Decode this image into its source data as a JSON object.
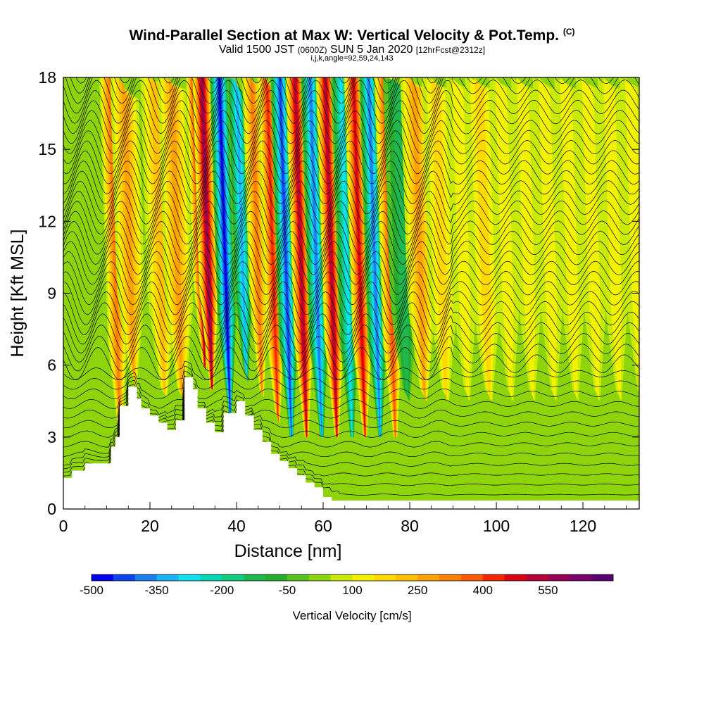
{
  "chart_data": {
    "type": "heatmap",
    "title": "Wind-Parallel Section at Max W: Vertical Velocity & Pot.Temp.",
    "title_suffix": "(C)",
    "subtitle": {
      "a": "Valid 1500 JST",
      "b": "(0600Z)",
      "c": "SUN 5 Jan 2020",
      "d": "[12hrFcst@2312z]"
    },
    "parameters": "i,j,k,angle=92,59,24,143",
    "xlabel": "Distance [nm]",
    "ylabel": "Height [Kft MSL]",
    "xlim": [
      0,
      133
    ],
    "ylim": [
      0,
      18
    ],
    "xticks": [
      0,
      20,
      40,
      60,
      80,
      100,
      120
    ],
    "yticks": [
      0,
      3,
      6,
      9,
      12,
      15,
      18
    ],
    "colorbar": {
      "label": "Vertical Velocity [cm/s]",
      "levels": [
        -500,
        -450,
        -400,
        -350,
        -300,
        -250,
        -200,
        -150,
        -100,
        -50,
        0,
        50,
        100,
        150,
        200,
        250,
        300,
        350,
        400,
        450,
        500,
        550,
        600,
        650
      ],
      "tick_labels": [
        "-500",
        "-350",
        "-200",
        "-50",
        "100",
        "250",
        "400",
        "550"
      ],
      "tick_values": [
        -500,
        -350,
        -200,
        -50,
        100,
        250,
        400,
        550
      ],
      "colors": [
        "#0000f0",
        "#0b44ee",
        "#1a7ff0",
        "#19b5f4",
        "#11e1ef",
        "#00d8b4",
        "#10cc80",
        "#1eb84e",
        "#27ad2d",
        "#57c21d",
        "#8ed40c",
        "#c8ea06",
        "#f2f200",
        "#ffd800",
        "#ffc000",
        "#ffa100",
        "#ff8000",
        "#ff5a00",
        "#f52500",
        "#d90015",
        "#b5003a",
        "#950055",
        "#7a006a",
        "#5a0070"
      ]
    },
    "terrain_profile": {
      "x": [
        0,
        2,
        2,
        5,
        5,
        11,
        11,
        12,
        12,
        13,
        13,
        15,
        15,
        17,
        17,
        18,
        18,
        20,
        20,
        22,
        22,
        24,
        24,
        26,
        26,
        28,
        28,
        30,
        30,
        31,
        31,
        33,
        33,
        35,
        35,
        37,
        37,
        40,
        40,
        42,
        42,
        44,
        44,
        46,
        46,
        48,
        48,
        50,
        50,
        52,
        52,
        54,
        54,
        56,
        56,
        58,
        58,
        60,
        60,
        62,
        62,
        64,
        64
      ],
      "height": [
        1.3,
        1.3,
        1.6,
        1.6,
        1.9,
        1.9,
        2.6,
        2.6,
        3.0,
        3.0,
        4.3,
        4.3,
        5.1,
        5.1,
        4.6,
        4.6,
        4.2,
        4.2,
        3.9,
        3.9,
        3.6,
        3.6,
        3.3,
        3.3,
        3.7,
        3.7,
        5.5,
        5.5,
        5.0,
        5.0,
        4.2,
        4.2,
        3.6,
        3.6,
        3.2,
        3.2,
        4.0,
        4.0,
        4.5,
        4.5,
        3.9,
        3.9,
        3.3,
        3.3,
        2.8,
        2.8,
        2.3,
        2.3,
        2.0,
        2.0,
        1.7,
        1.7,
        1.4,
        1.4,
        1.1,
        1.1,
        0.9,
        0.9,
        0.5,
        0.5,
        0.2,
        0.2,
        0.0
      ]
    },
    "vertical_velocity_bands": [
      {
        "x": 10.5,
        "w": 300
      },
      {
        "x": 14.0,
        "w": 250
      },
      {
        "x": 21.0,
        "w": 200
      },
      {
        "x": 25.0,
        "w": 250
      },
      {
        "x": 30.5,
        "w": 500
      },
      {
        "x": 32.0,
        "w": 550
      },
      {
        "x": 36.0,
        "w": -500
      },
      {
        "x": 40.0,
        "w": -350
      },
      {
        "x": 43.5,
        "w": 300
      },
      {
        "x": 47.0,
        "w": 400
      },
      {
        "x": 50.0,
        "w": -450
      },
      {
        "x": 53.5,
        "w": 500
      },
      {
        "x": 57.0,
        "w": -400
      },
      {
        "x": 60.5,
        "w": 500
      },
      {
        "x": 64.0,
        "w": -300
      },
      {
        "x": 67.0,
        "w": 450
      },
      {
        "x": 70.5,
        "w": -400
      },
      {
        "x": 74.0,
        "w": 350
      },
      {
        "x": 77.0,
        "w": -150
      },
      {
        "x": 81.0,
        "w": 250
      },
      {
        "x": 86.0,
        "w": 150
      },
      {
        "x": 91.0,
        "w": 100
      },
      {
        "x": 96.0,
        "w": 150
      },
      {
        "x": 101.0,
        "w": 100
      },
      {
        "x": 106.0,
        "w": 100
      },
      {
        "x": 111.0,
        "w": 100
      },
      {
        "x": 116.0,
        "w": 100
      },
      {
        "x": 121.0,
        "w": 100
      },
      {
        "x": 126.0,
        "w": 100
      },
      {
        "x": 131.0,
        "w": 100
      }
    ],
    "background_w": 0,
    "grid": false
  }
}
